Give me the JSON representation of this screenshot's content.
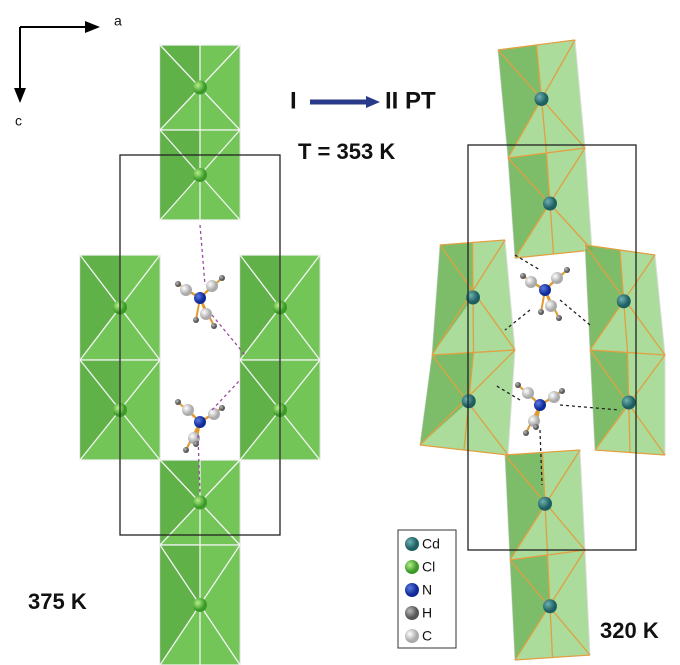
{
  "axes": {
    "a": "a",
    "c": "c"
  },
  "transition": {
    "from": "I",
    "to": "II PT",
    "temperature": "T = 353 K"
  },
  "structures": [
    {
      "label": "375 K"
    },
    {
      "label": "320 K"
    }
  ],
  "legend": [
    {
      "label": "Cd"
    },
    {
      "label": "Cl"
    },
    {
      "label": "N"
    },
    {
      "label": "H"
    },
    {
      "label": "C"
    }
  ]
}
